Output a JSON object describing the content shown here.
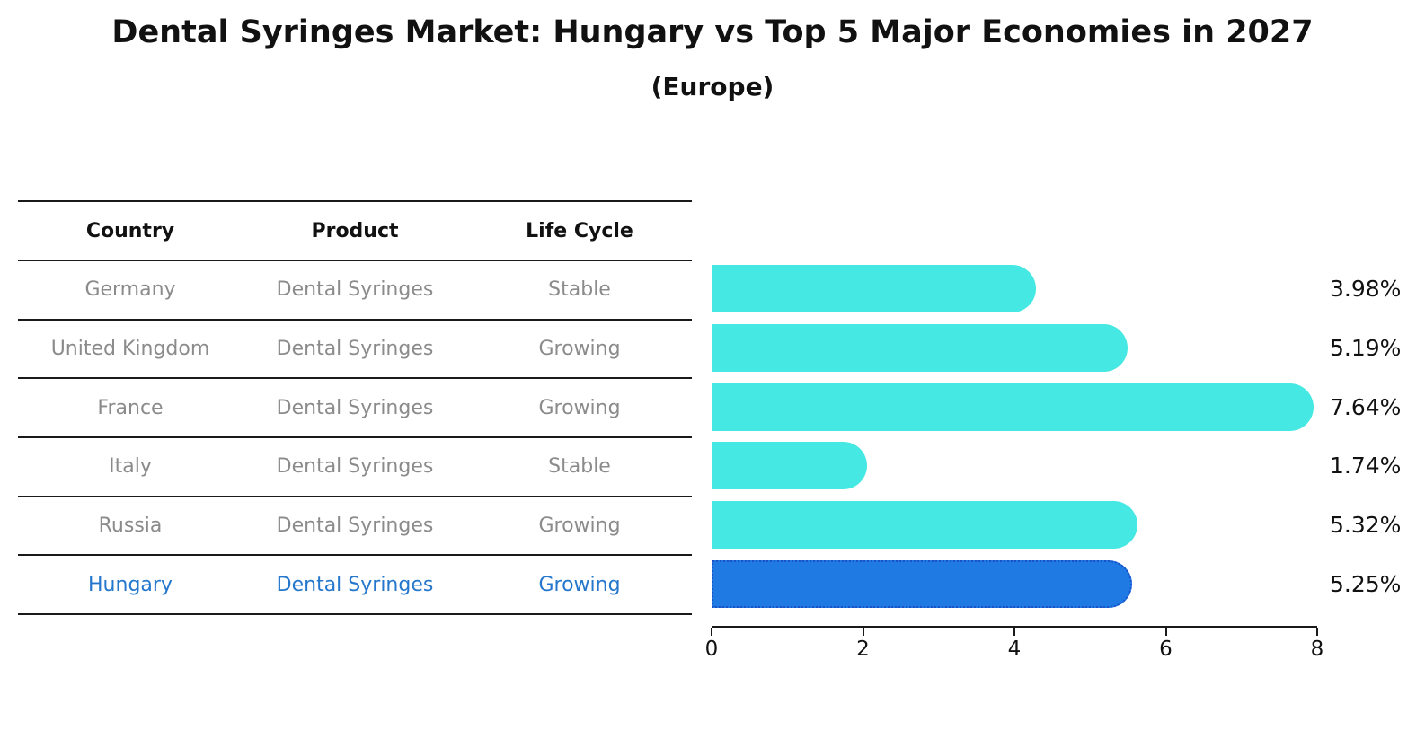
{
  "title": "Dental Syringes Market: Hungary vs Top 5 Major Economies in 2027",
  "subtitle": "(Europe)",
  "table": {
    "headers": [
      "Country",
      "Product",
      "Life Cycle"
    ],
    "rows": [
      {
        "country": "Germany",
        "product": "Dental Syringes",
        "life_cycle": "Stable",
        "highlight": false
      },
      {
        "country": "United Kingdom",
        "product": "Dental Syringes",
        "life_cycle": "Growing",
        "highlight": false
      },
      {
        "country": "France",
        "product": "Dental Syringes",
        "life_cycle": "Growing",
        "highlight": false
      },
      {
        "country": "Italy",
        "product": "Dental Syringes",
        "life_cycle": "Stable",
        "highlight": false
      },
      {
        "country": "Russia",
        "product": "Dental Syringes",
        "life_cycle": "Growing",
        "highlight": true
      },
      {
        "country": "Hungary",
        "product": "Dental Syringes",
        "life_cycle": "Growing",
        "highlight": true
      }
    ]
  },
  "chart_data": {
    "type": "bar",
    "orientation": "horizontal",
    "title": "Dental Syringes Market: Hungary vs Top 5 Major Economies in 2027",
    "subtitle": "(Europe)",
    "categories": [
      "Germany",
      "United Kingdom",
      "France",
      "Italy",
      "Russia",
      "Hungary"
    ],
    "values": [
      3.98,
      5.19,
      7.64,
      1.74,
      5.32,
      5.25
    ],
    "value_labels": [
      "3.98%",
      "5.19%",
      "7.64%",
      "1.74%",
      "5.32%",
      "5.25%"
    ],
    "xlabel": "",
    "ylabel": "",
    "xlim": [
      0,
      8
    ],
    "x_ticks": [
      "0",
      "2",
      "4",
      "6",
      "8"
    ],
    "grid": false,
    "legend": false,
    "bar_color": "#45e8e2",
    "highlight_index": 5,
    "highlight_bar_color": "#1f7ae4",
    "highlight_border_color": "#1a50c8"
  },
  "colors": {
    "row_text": "#8b8b8b",
    "highlight_text": "#2477cc",
    "header_text": "#111111",
    "axis_color": "#1a1a1a"
  }
}
